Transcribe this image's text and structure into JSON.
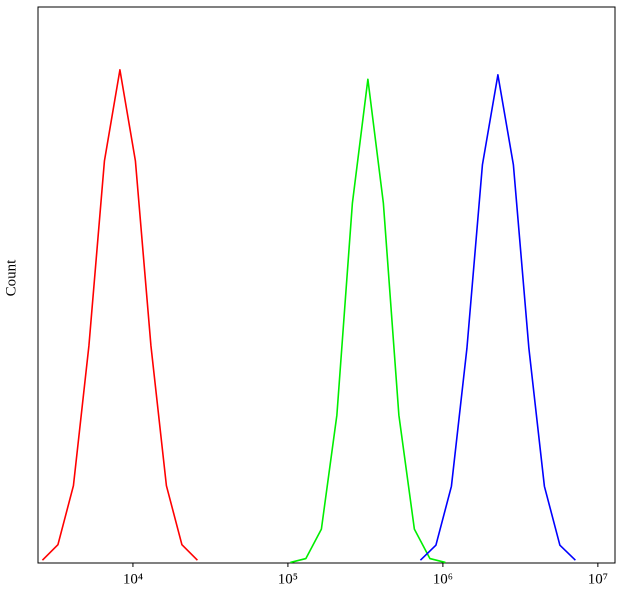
{
  "chart_data": {
    "type": "line",
    "x_scale": "log",
    "y_label": "Count",
    "xlim": [
      2440,
      12900000
    ],
    "ylim": [
      0,
      100
    ],
    "xticks": [
      {
        "value": 10000,
        "label": "10⁴"
      },
      {
        "value": 100000,
        "label": "10⁵"
      },
      {
        "value": 1000000,
        "label": "10⁶"
      },
      {
        "value": 10000000,
        "label": "10⁷"
      }
    ],
    "series": [
      {
        "color": "#ff0000",
        "x": [
          2606,
          3281,
          4130,
          5200,
          6546,
          8241,
          10375,
          13062,
          16444,
          20701,
          26062
        ],
        "values": [
          0.5,
          3.3,
          13.9,
          39.1,
          72.3,
          88.7,
          72.3,
          39.1,
          13.9,
          3.3,
          0.5
        ]
      },
      {
        "color": "#00ee00",
        "x": [
          103753,
          130617,
          164437,
          207014,
          260615,
          328095,
          413048,
          519996,
          654636,
          824138,
          1037528
        ],
        "values": [
          0.1,
          0.8,
          6.1,
          26.6,
          64.7,
          87,
          64.7,
          26.6,
          6.1,
          0.8,
          0.1
        ]
      },
      {
        "color": "#0000ff",
        "x": [
          716143,
          901571,
          1135011,
          1428894,
          1798871,
          2264644,
          2851018,
          3589201,
          4518559,
          5688529,
          7161434
        ],
        "values": [
          0.5,
          3.2,
          13.8,
          38.6,
          71.6,
          87.8,
          71.6,
          38.6,
          13.8,
          3.2,
          0.5
        ]
      }
    ]
  }
}
